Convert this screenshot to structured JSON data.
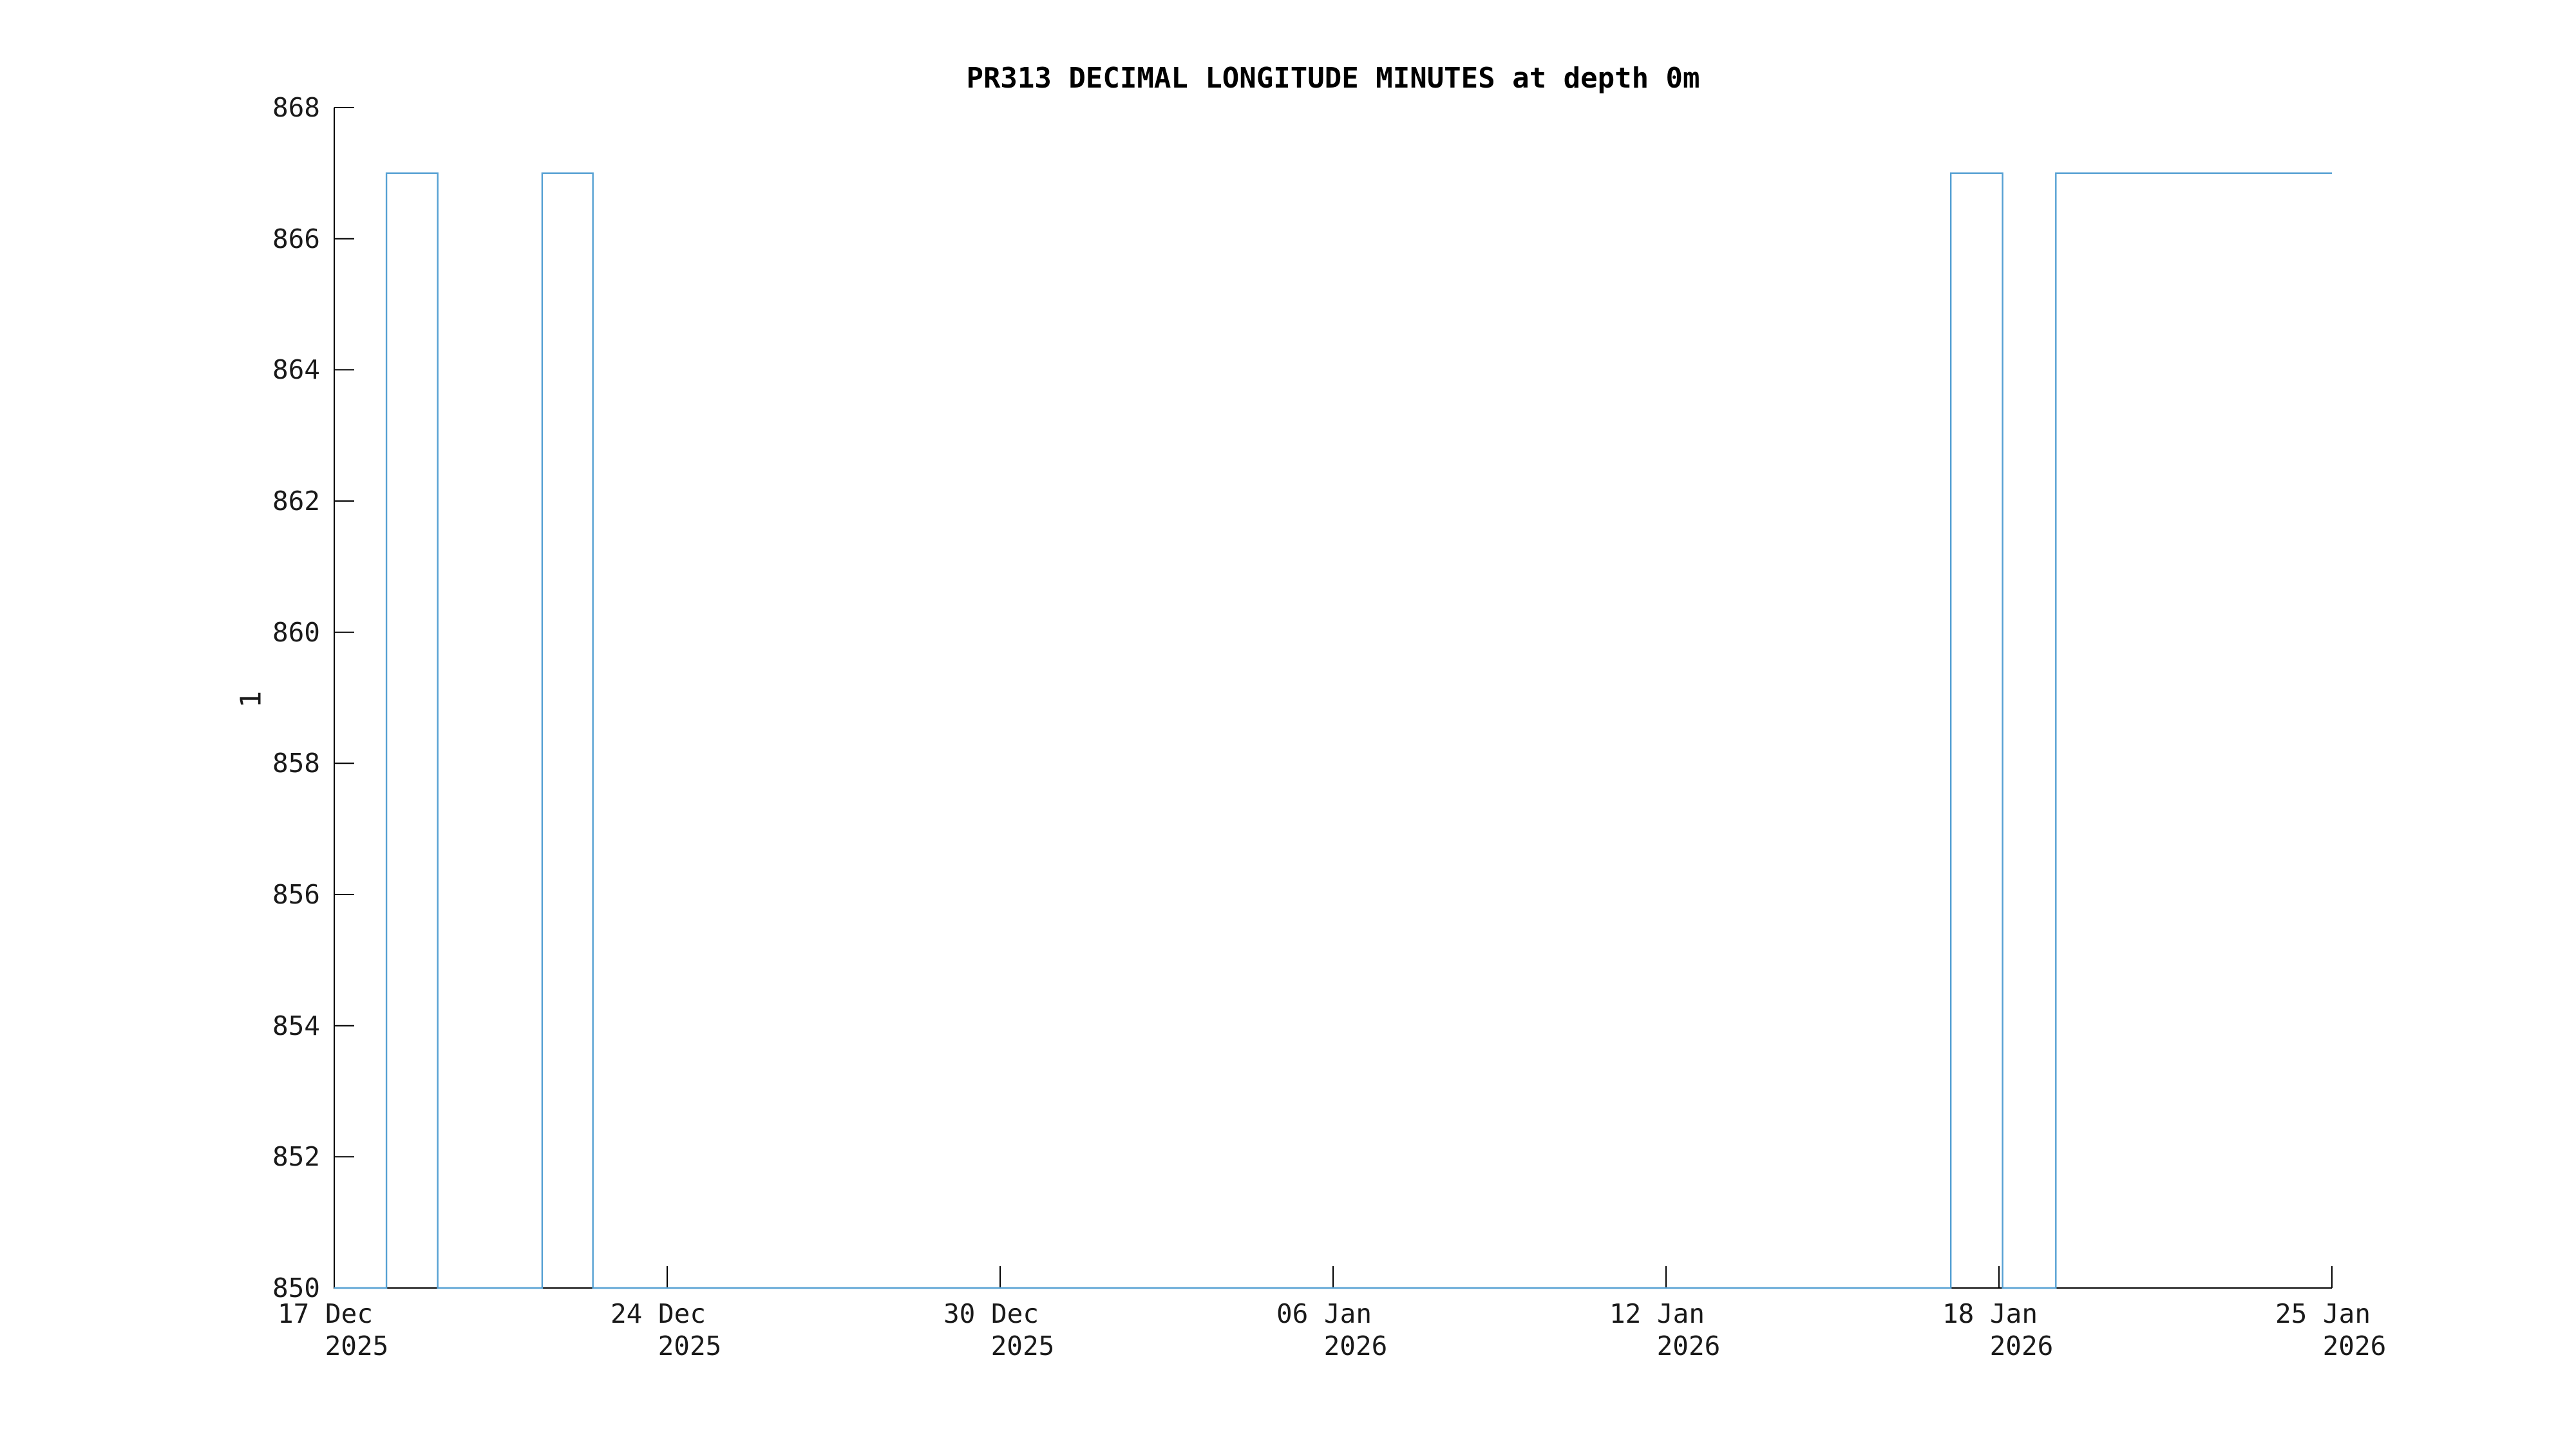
{
  "chart_data": {
    "type": "line",
    "title": "PR313 DECIMAL LONGITUDE MINUTES at depth 0m",
    "xlabel": "",
    "ylabel": "1",
    "ylim": [
      850,
      868
    ],
    "yticks": [
      868,
      866,
      864,
      862,
      860,
      858,
      856,
      854,
      852,
      850
    ],
    "xlim_days": [
      0,
      39
    ],
    "x_start_date": "17 Dec 2025",
    "x_end_date": "25 Jan 2026",
    "xticks": [
      {
        "day": 0.0,
        "line1": "17 Dec",
        "line2": "2025"
      },
      {
        "day": 6.5,
        "line1": "24 Dec",
        "line2": "2025"
      },
      {
        "day": 13.0,
        "line1": "30 Dec",
        "line2": "2025"
      },
      {
        "day": 19.5,
        "line1": "06 Jan",
        "line2": "2026"
      },
      {
        "day": 26.0,
        "line1": "12 Jan",
        "line2": "2026"
      },
      {
        "day": 32.5,
        "line1": "18 Jan",
        "line2": "2026"
      },
      {
        "day": 39.0,
        "line1": "25 Jan",
        "line2": "2026"
      }
    ],
    "grid": false,
    "legend": "none",
    "axis_style": "open-left-bottom, inward ticks",
    "line_color": "#55A0D3",
    "axis_color": "#000000",
    "series": [
      {
        "name": "decimal longitude minutes",
        "style": "step",
        "segments": [
          {
            "from_day": 0.0,
            "to_day": 1.02,
            "value": 850
          },
          {
            "from_day": 1.02,
            "to_day": 2.02,
            "value": 867
          },
          {
            "from_day": 2.02,
            "to_day": 4.06,
            "value": 850
          },
          {
            "from_day": 4.06,
            "to_day": 5.05,
            "value": 867
          },
          {
            "from_day": 5.05,
            "to_day": 31.56,
            "value": 850
          },
          {
            "from_day": 31.56,
            "to_day": 32.57,
            "value": 867
          },
          {
            "from_day": 32.57,
            "to_day": 33.61,
            "value": 850
          },
          {
            "from_day": 33.61,
            "to_day": 39.0,
            "value": 867
          }
        ]
      }
    ]
  }
}
